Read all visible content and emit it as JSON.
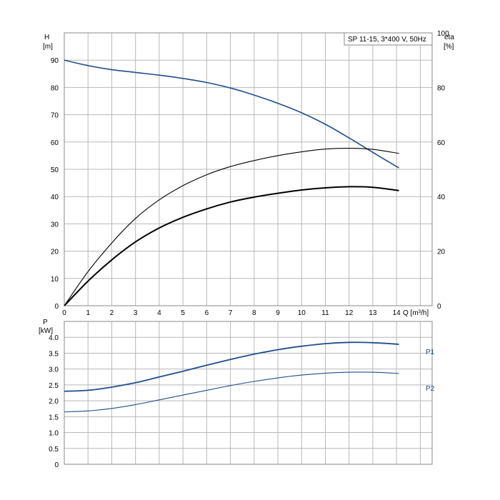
{
  "chart_data": [
    {
      "type": "line",
      "title": "SP 11-15, 3*400 V, 50Hz",
      "xlabel": "Q [m³/h]",
      "x_ticks": [
        "0",
        "1",
        "2",
        "3",
        "4",
        "5",
        "6",
        "7",
        "8",
        "9",
        "10",
        "11",
        "12",
        "13",
        "14"
      ],
      "xlim": [
        0,
        15.5
      ],
      "ylabel_left": "H",
      "ylabel_left_unit": "[m]",
      "ylim_left": [
        0,
        100
      ],
      "y_ticks_left": [
        "0",
        "10",
        "20",
        "30",
        "40",
        "50",
        "60",
        "70",
        "80",
        "90"
      ],
      "ylabel_right": "eta",
      "ylabel_right_unit": "[%]",
      "ylim_right": [
        0,
        100
      ],
      "y_ticks_right": [
        "0",
        "20",
        "40",
        "60",
        "80",
        "100"
      ],
      "grid": true,
      "series": [
        {
          "axis": "left",
          "color": "#1f4e8c",
          "points": [
            [
              0,
              90
            ],
            [
              1,
              88
            ],
            [
              2,
              86.5
            ],
            [
              3,
              85.5
            ],
            [
              4,
              84.5
            ],
            [
              5,
              83.3
            ],
            [
              6,
              81.8
            ],
            [
              7,
              79.8
            ],
            [
              8,
              77.2
            ],
            [
              9,
              74.2
            ],
            [
              10,
              70.7
            ],
            [
              11,
              66.5
            ],
            [
              12,
              61.5
            ],
            [
              13,
              56.2
            ],
            [
              14.1,
              50.5
            ]
          ]
        },
        {
          "axis": "right",
          "color": "#000000",
          "points": [
            [
              0,
              0
            ],
            [
              1,
              12.5
            ],
            [
              2,
              23
            ],
            [
              3,
              32
            ],
            [
              4,
              38.8
            ],
            [
              5,
              44
            ],
            [
              6,
              48
            ],
            [
              7,
              51
            ],
            [
              8,
              53.2
            ],
            [
              9,
              55
            ],
            [
              10,
              56.4
            ],
            [
              11,
              57.4
            ],
            [
              12,
              57.7
            ],
            [
              13,
              57.3
            ],
            [
              14.1,
              55.8
            ]
          ]
        },
        {
          "axis": "right",
          "color": "#000000",
          "points": [
            [
              0,
              0
            ],
            [
              1,
              9
            ],
            [
              2,
              16.8
            ],
            [
              3,
              23.4
            ],
            [
              4,
              28.5
            ],
            [
              5,
              32.4
            ],
            [
              6,
              35.5
            ],
            [
              7,
              38
            ],
            [
              8,
              39.8
            ],
            [
              9,
              41.2
            ],
            [
              10,
              42.4
            ],
            [
              11,
              43.2
            ],
            [
              12,
              43.6
            ],
            [
              13,
              43.4
            ],
            [
              14.1,
              42.2
            ]
          ]
        }
      ]
    },
    {
      "type": "line",
      "ylabel": "P",
      "ylabel_unit": "[kW]",
      "ylim": [
        0,
        4.5
      ],
      "y_ticks": [
        "0",
        "0.5",
        "1.0",
        "1.5",
        "2.0",
        "2.5",
        "3.0",
        "3.5",
        "4.0"
      ],
      "xlim": [
        0,
        15.5
      ],
      "grid": true,
      "series": [
        {
          "name": "P1",
          "color": "#1f4e8c",
          "points": [
            [
              0,
              2.3
            ],
            [
              1,
              2.33
            ],
            [
              2,
              2.43
            ],
            [
              3,
              2.57
            ],
            [
              4,
              2.75
            ],
            [
              5,
              2.93
            ],
            [
              6,
              3.12
            ],
            [
              7,
              3.3
            ],
            [
              8,
              3.47
            ],
            [
              9,
              3.61
            ],
            [
              10,
              3.72
            ],
            [
              11,
              3.8
            ],
            [
              12,
              3.84
            ],
            [
              13,
              3.83
            ],
            [
              14.1,
              3.78
            ]
          ]
        },
        {
          "name": "P2",
          "color": "#1f4e8c",
          "points": [
            [
              0,
              1.65
            ],
            [
              1,
              1.68
            ],
            [
              2,
              1.76
            ],
            [
              3,
              1.88
            ],
            [
              4,
              2.03
            ],
            [
              5,
              2.18
            ],
            [
              6,
              2.33
            ],
            [
              7,
              2.48
            ],
            [
              8,
              2.61
            ],
            [
              9,
              2.72
            ],
            [
              10,
              2.81
            ],
            [
              11,
              2.87
            ],
            [
              12,
              2.9
            ],
            [
              13,
              2.9
            ],
            [
              14.1,
              2.86
            ]
          ]
        }
      ]
    }
  ]
}
